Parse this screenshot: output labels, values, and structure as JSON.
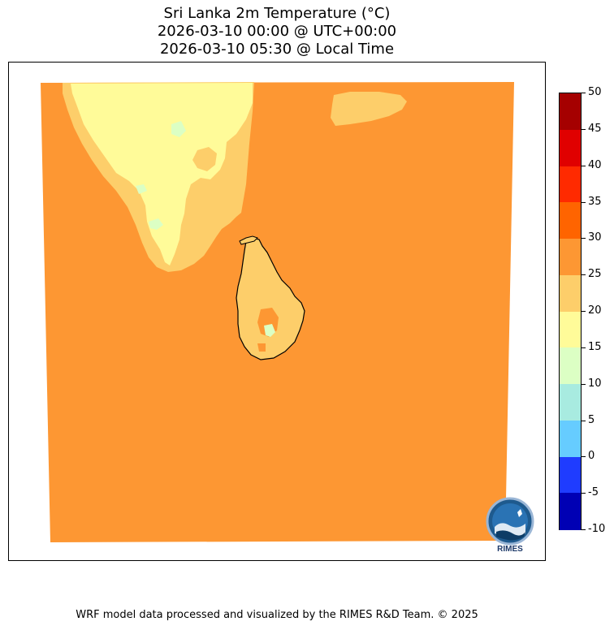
{
  "title": {
    "line1": "Sri Lanka 2m Temperature (°C)",
    "line2": "2026-03-10 00:00 @ UTC+00:00",
    "line3": "2026-03-10 05:30 @ Local Time"
  },
  "colorbar": {
    "ticks": [
      "50",
      "45",
      "40",
      "35",
      "30",
      "25",
      "20",
      "15",
      "10",
      "5",
      "0",
      "-5",
      "-10"
    ],
    "bins": [
      {
        "range": "45-50",
        "color": "#a50000"
      },
      {
        "range": "40-45",
        "color": "#e00000"
      },
      {
        "range": "35-40",
        "color": "#ff2a00"
      },
      {
        "range": "30-35",
        "color": "#ff6400"
      },
      {
        "range": "25-30",
        "color": "#fd9733"
      },
      {
        "range": "20-25",
        "color": "#fdce6a"
      },
      {
        "range": "15-20",
        "color": "#fffb99"
      },
      {
        "range": "10-15",
        "color": "#dcffc4"
      },
      {
        "range": "5-10",
        "color": "#a8ebe0"
      },
      {
        "range": "0-5",
        "color": "#66ccff"
      },
      {
        "range": "-5-0",
        "color": "#1f3cff"
      },
      {
        "range": "-10--5",
        "color": "#0000b4"
      }
    ]
  },
  "map": {
    "background_color": "#fd9733",
    "land_warm_color": "#fdce6a",
    "land_mild_color": "#fffb99",
    "land_cool_color": "#dcffc4",
    "coastline_color": "#000000"
  },
  "logo": {
    "text": "RIMES",
    "icon": "rimes-logo-icon"
  },
  "footer": {
    "text": "WRF model data processed and visualized by the RIMES R&D Team. © 2025"
  }
}
